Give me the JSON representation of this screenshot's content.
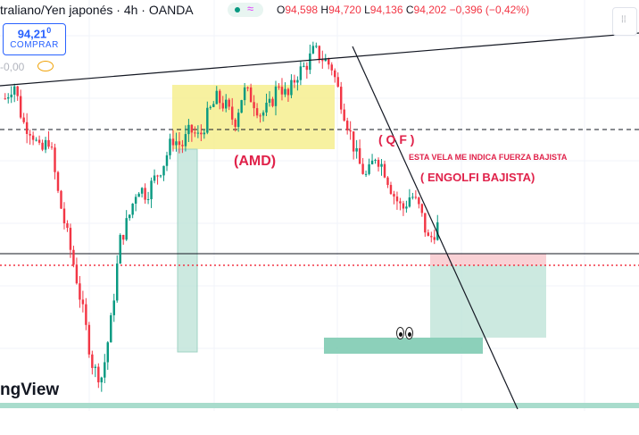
{
  "header": {
    "symbol": "traliano/Yen japonés",
    "interval": "4h",
    "exchange": "OANDA",
    "sep": "·",
    "ohlc": {
      "o_label": "O",
      "o": "94,598",
      "h_label": "H",
      "h": "94,720",
      "l_label": "L",
      "l": "94,136",
      "c_label": "C",
      "c": "94,202",
      "change": "−0,396 (−0,42%)"
    }
  },
  "buy_button": {
    "price": "94,21",
    "price_small": "0",
    "label": "COMPRAR"
  },
  "volume_label": "-0,00",
  "watermark": "ngView",
  "annotations": {
    "amd": "(AMD)",
    "qf": "( Q F )",
    "note": "ESTA VELA ME INDICA FUERZA BAJISTA",
    "engulfing": "( ENGOLFI BAJISTA)"
  },
  "icons": {
    "settings_handle": "grip-dots-icon",
    "visibility": "eye-icon",
    "emoji": "eyes-emoji-icon"
  },
  "colors": {
    "up": "#089981",
    "down": "#f23645",
    "amd_zone": "#f6ee8f",
    "green_zone": "#b7e0d3",
    "red_zone": "#f7c6cb",
    "annotation": "#e0224a",
    "line": "#131722"
  },
  "chart_data": {
    "type": "candlestick",
    "y_range_estimate": [
      91.4,
      96.0
    ],
    "close_path": [
      95.1,
      95.3,
      94.8,
      94.7,
      94.4,
      94.6,
      93.9,
      93.4,
      92.9,
      92.3,
      91.7,
      91.6,
      92.3,
      93.3,
      93.6,
      94.0,
      93.9,
      94.1,
      94.3,
      94.6,
      94.5,
      94.7,
      94.6,
      94.9,
      95.1,
      95.0,
      94.8,
      95.2,
      95.1,
      94.9,
      95.0,
      95.3,
      95.1,
      95.4,
      95.5,
      95.7,
      95.6,
      95.5,
      95.1,
      94.7,
      94.3,
      94.1,
      94.4,
      94.2,
      93.9,
      93.7,
      93.9,
      93.7,
      93.3,
      93.5
    ],
    "current_price": 94.202,
    "levels": {
      "dashed_black": 94.88,
      "solid_black": 93.49,
      "dotted_red": 93.34
    }
  }
}
